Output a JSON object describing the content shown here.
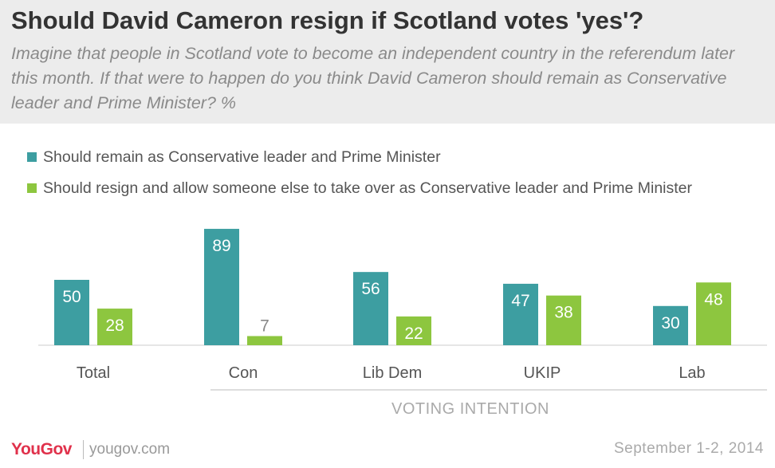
{
  "header": {
    "title": "Should David Cameron resign if Scotland votes 'yes'?",
    "subtitle": "Imagine that people in Scotland vote to become an independent country in the referendum later this month. If that were to happen do you think David Cameron should remain as Conservative leader and Prime Minister? %"
  },
  "colors": {
    "teal": "#3d9ea1",
    "green": "#8dc63f",
    "axis": "#cccccc",
    "header_bg": "#ececec"
  },
  "chart_data": {
    "type": "bar",
    "categories": [
      "Total",
      "Con",
      "Lib Dem",
      "UKIP",
      "Lab"
    ],
    "series": [
      {
        "name": "Should remain as Conservative leader and Prime Minister",
        "color": "#3d9ea1",
        "values": [
          50,
          89,
          56,
          47,
          30
        ]
      },
      {
        "name": "Should resign and allow someone else to take over as Conservative leader and Prime Minister",
        "color": "#8dc63f",
        "values": [
          28,
          7,
          22,
          38,
          48
        ]
      }
    ],
    "group_label": "VOTING INTENTION",
    "ylim": [
      0,
      100
    ],
    "legend": "top-left",
    "grid": false
  },
  "footer": {
    "logo": "YouGov",
    "url": "yougov.com",
    "date": "September 1-2, 2014"
  }
}
